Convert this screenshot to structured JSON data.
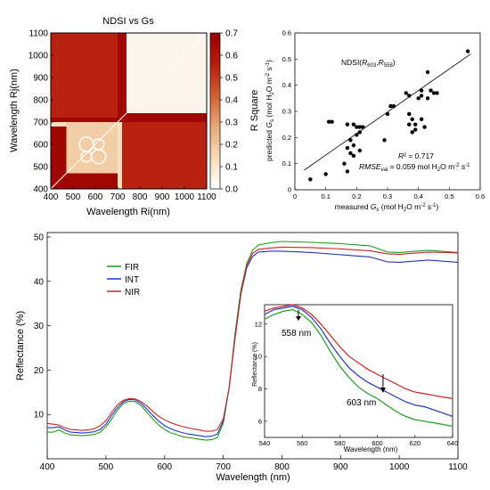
{
  "chart_data": [
    {
      "type": "heatmap",
      "title": "NDSI vs Gs",
      "xlabel": "Wavelength Ri(nm)",
      "ylabel": "Wavelength Rj(nm)",
      "x_ticks": [
        "400",
        "500",
        "600",
        "700",
        "800",
        "900",
        "1000",
        "1100"
      ],
      "y_ticks": [
        "400",
        "500",
        "600",
        "700",
        "800",
        "900",
        "1000",
        "1100"
      ],
      "xlim": [
        400,
        1100
      ],
      "ylim": [
        400,
        1100
      ],
      "colorbar": {
        "label": "R Square",
        "range": [
          0,
          0.7
        ],
        "ticks": [
          "0.0",
          "0.1",
          "0.2",
          "0.3",
          "0.4",
          "0.5",
          "0.6",
          "0.7"
        ],
        "colors": [
          "#ffffff",
          "#f6dcb8",
          "#e9a877",
          "#d2602e",
          "#b51d0f",
          "#960000"
        ]
      },
      "regions": [
        {
          "x": [
            400,
            1100
          ],
          "y": [
            400,
            1100
          ],
          "value": 0.66
        },
        {
          "x": [
            400,
            700
          ],
          "y": [
            680,
            700
          ],
          "value": 0.12
        },
        {
          "x": [
            700,
            720
          ],
          "y": [
            400,
            700
          ],
          "value": 0.12
        },
        {
          "x": [
            740,
            1100
          ],
          "y": [
            740,
            1100
          ],
          "value": 0.04
        },
        {
          "x": [
            470,
            700
          ],
          "y": [
            470,
            700
          ],
          "value": 0.18
        },
        {
          "x": [
            720,
            1100
          ],
          "y": [
            400,
            700
          ],
          "value": 0.55
        },
        {
          "x": [
            400,
            700
          ],
          "y": [
            720,
            1100
          ],
          "value": 0.55
        }
      ]
    },
    {
      "type": "scatter",
      "xlabel": "measured Gs (mol H2O m-2 s-1)",
      "ylabel": "predicted Gs (mol H2O m-2 s-1)",
      "xlim": [
        0,
        0.6
      ],
      "ylim": [
        0,
        0.6
      ],
      "x_ticks": [
        "0",
        "0.1",
        "0.2",
        "0.3",
        "0.4",
        "0.5",
        "0.6"
      ],
      "y_ticks": [
        "0",
        "0.1",
        "0.2",
        "0.3",
        "0.4",
        "0.5",
        "0.6"
      ],
      "annotations": {
        "index": "NDSI(R603,R558)",
        "r2": "R² = 0.717",
        "rmse": "RMSEval = 0.059 mol H2O m-2 s-1"
      },
      "fit_line": {
        "x": [
          0.03,
          0.57
        ],
        "y": [
          0.075,
          0.52
        ]
      },
      "points": [
        [
          0.05,
          0.04
        ],
        [
          0.1,
          0.06
        ],
        [
          0.11,
          0.26
        ],
        [
          0.12,
          0.26
        ],
        [
          0.16,
          0.1
        ],
        [
          0.17,
          0.16
        ],
        [
          0.17,
          0.25
        ],
        [
          0.18,
          0.19
        ],
        [
          0.18,
          0.14
        ],
        [
          0.19,
          0.17
        ],
        [
          0.19,
          0.13
        ],
        [
          0.19,
          0.25
        ],
        [
          0.2,
          0.24
        ],
        [
          0.2,
          0.21
        ],
        [
          0.21,
          0.22
        ],
        [
          0.21,
          0.15
        ],
        [
          0.21,
          0.24
        ],
        [
          0.22,
          0.24
        ],
        [
          0.17,
          0.07
        ],
        [
          0.29,
          0.19
        ],
        [
          0.3,
          0.29
        ],
        [
          0.31,
          0.32
        ],
        [
          0.32,
          0.32
        ],
        [
          0.36,
          0.37
        ],
        [
          0.37,
          0.36
        ],
        [
          0.37,
          0.29
        ],
        [
          0.37,
          0.25
        ],
        [
          0.38,
          0.22
        ],
        [
          0.38,
          0.27
        ],
        [
          0.39,
          0.25
        ],
        [
          0.39,
          0.23
        ],
        [
          0.4,
          0.35
        ],
        [
          0.41,
          0.36
        ],
        [
          0.41,
          0.38
        ],
        [
          0.41,
          0.27
        ],
        [
          0.42,
          0.24
        ],
        [
          0.43,
          0.35
        ],
        [
          0.43,
          0.45
        ],
        [
          0.44,
          0.38
        ],
        [
          0.45,
          0.37
        ],
        [
          0.46,
          0.37
        ],
        [
          0.56,
          0.53
        ]
      ]
    },
    {
      "type": "line",
      "xlabel": "Wavelength (nm)",
      "ylabel": "Reflectance (%)",
      "xlim": [
        400,
        1100
      ],
      "ylim": [
        0,
        50
      ],
      "x_ticks": [
        "400",
        "500",
        "600",
        "700",
        "800",
        "900",
        "1000",
        "1100"
      ],
      "y_ticks": [
        "10",
        "20",
        "30",
        "40",
        "50"
      ],
      "x": [
        400,
        410,
        420,
        430,
        440,
        450,
        460,
        470,
        480,
        490,
        500,
        510,
        520,
        530,
        540,
        550,
        560,
        570,
        580,
        590,
        600,
        610,
        620,
        630,
        640,
        650,
        660,
        670,
        680,
        690,
        700,
        710,
        720,
        730,
        740,
        750,
        760,
        780,
        800,
        850,
        900,
        950,
        980,
        1000,
        1050,
        1100
      ],
      "series": [
        {
          "name": "FIR",
          "color": "#1a9e1a",
          "values": [
            6,
            6,
            6.5,
            5.8,
            5.4,
            5.3,
            5.2,
            5.3,
            5.5,
            6,
            7.2,
            9,
            11,
            12.5,
            13,
            12.9,
            12,
            10.5,
            9,
            7.6,
            6.6,
            5.9,
            5.5,
            5,
            4.8,
            4.6,
            4.4,
            4.2,
            4.3,
            4.8,
            8,
            16,
            28,
            38,
            44,
            47,
            48.2,
            48.7,
            49,
            48.8,
            48.5,
            48,
            46.6,
            46.5,
            47,
            46.5
          ]
        },
        {
          "name": "INT",
          "color": "#1f35c4",
          "values": [
            7,
            7,
            7.2,
            6.5,
            6,
            5.9,
            5.8,
            5.9,
            6.1,
            6.6,
            7.8,
            9.8,
            11.6,
            12.9,
            13.4,
            13.3,
            12.5,
            11.2,
            9.8,
            8.5,
            7.5,
            6.8,
            6.3,
            5.9,
            5.6,
            5.4,
            5.2,
            5,
            5.1,
            5.6,
            8.5,
            16,
            27,
            37,
            43,
            45.6,
            46.6,
            46.8,
            46.8,
            46.5,
            46,
            45.5,
            44.4,
            44.3,
            44.8,
            44.3
          ]
        },
        {
          "name": "NIR",
          "color": "#d42020",
          "values": [
            8,
            7.8,
            7.6,
            7,
            6.6,
            6.5,
            6.4,
            6.5,
            6.8,
            7.4,
            8.6,
            10.5,
            12.2,
            13.2,
            13.6,
            13.5,
            12.9,
            11.9,
            10.7,
            9.6,
            8.8,
            8.2,
            7.7,
            7.3,
            7,
            6.7,
            6.5,
            6.2,
            6.2,
            6.6,
            9,
            16,
            27,
            37,
            43.5,
            46.3,
            47.2,
            47.5,
            47.7,
            47.6,
            47.3,
            46.9,
            46.2,
            46.1,
            46.6,
            46.4
          ]
        }
      ],
      "inset": {
        "xlabel": "Wavelength (nm)",
        "ylabel": "Reflectance (%)",
        "xlim": [
          540,
          640
        ],
        "ylim": [
          5,
          13.2
        ],
        "x_ticks": [
          "540",
          "560",
          "580",
          "600",
          "620",
          "640"
        ],
        "y_ticks": [
          "6",
          "8",
          "10",
          "12"
        ],
        "x": [
          540,
          545,
          550,
          555,
          560,
          565,
          570,
          575,
          580,
          585,
          590,
          595,
          600,
          605,
          610,
          615,
          620,
          625,
          630,
          635,
          640
        ],
        "series": [
          {
            "name": "FIR",
            "values": [
              12.3,
              12.6,
              12.8,
              12.9,
              12.6,
              12.1,
              11.3,
              10.3,
              9.4,
              8.7,
              8.1,
              7.7,
              7.4,
              7.0,
              6.6,
              6.3,
              6.1,
              6.0,
              5.9,
              5.8,
              5.7
            ]
          },
          {
            "name": "INT",
            "values": [
              12.6,
              12.9,
              13.0,
              13.1,
              12.9,
              12.4,
              11.7,
              10.8,
              10.0,
              9.3,
              8.8,
              8.4,
              8.1,
              7.8,
              7.5,
              7.2,
              7.0,
              6.9,
              6.7,
              6.5,
              6.3
            ]
          },
          {
            "name": "NIR",
            "values": [
              12.8,
              13.0,
              13.1,
              13.2,
              13.0,
              12.6,
              12.0,
              11.3,
              10.6,
              10.0,
              9.6,
              9.2,
              8.9,
              8.6,
              8.3,
              8.0,
              7.8,
              7.7,
              7.6,
              7.5,
              7.4
            ]
          }
        ],
        "annotations": [
          {
            "label": "558 nm",
            "x": 558
          },
          {
            "label": "603 nm",
            "x": 603
          }
        ]
      }
    }
  ]
}
